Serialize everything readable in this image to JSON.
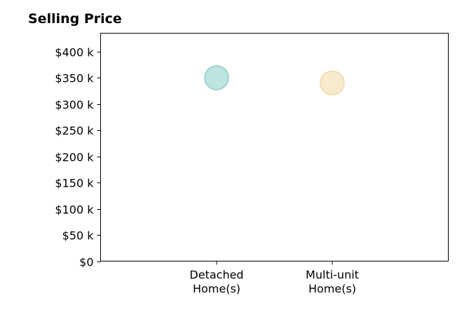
{
  "chart_data": {
    "type": "scatter",
    "title": "Selling Price",
    "xlabel": "",
    "ylabel": "",
    "categories": [
      "Detached\nHome(s)",
      "Multi-unit\nHome(s)"
    ],
    "values": [
      350000,
      340000
    ],
    "point_colors": [
      "#b2dfdb",
      "#f7e6c4"
    ],
    "point_edge_colors": [
      "#8ecbc4",
      "#efd8a8"
    ],
    "ylim": [
      0,
      435000
    ],
    "yticks": [
      0,
      50000,
      100000,
      150000,
      200000,
      250000,
      300000,
      350000,
      400000
    ],
    "ytick_labels": [
      "$0",
      "$50 k",
      "$100 k",
      "$150 k",
      "$200 k",
      "$250 k",
      "$300 k",
      "$350 k",
      "$400 k"
    ],
    "grid": false,
    "legend": "none"
  }
}
